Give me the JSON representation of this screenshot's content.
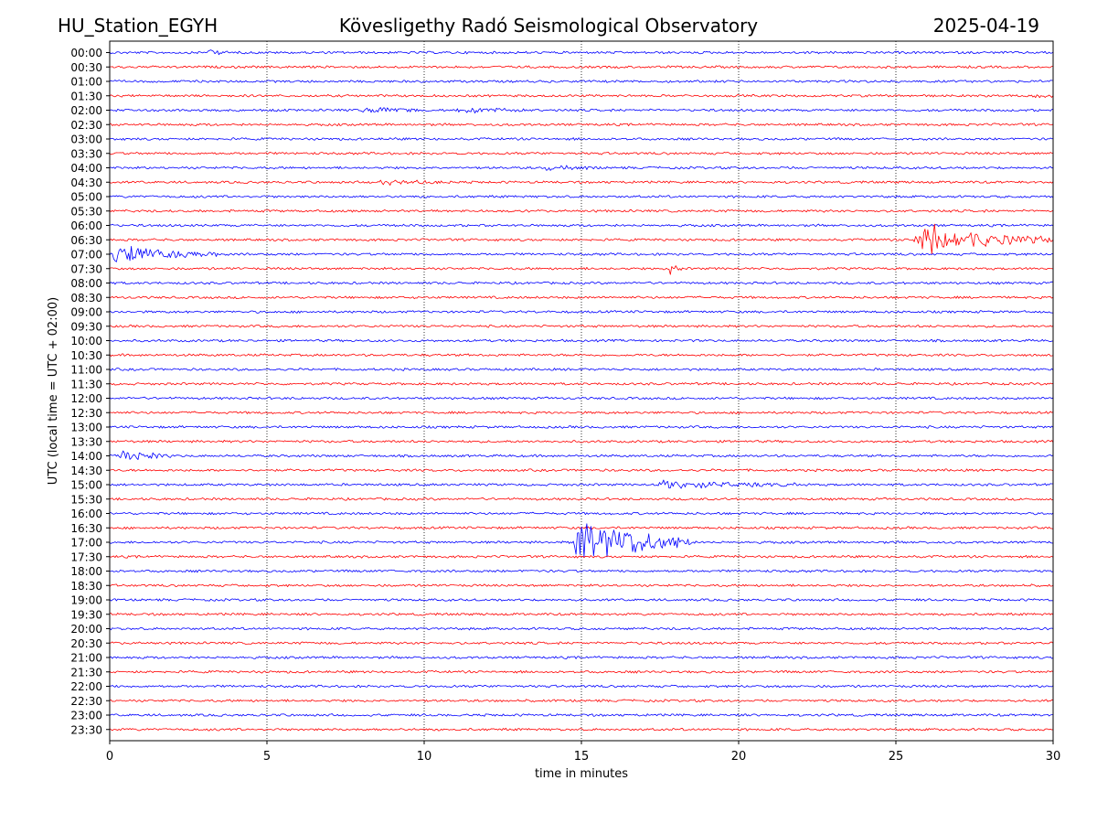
{
  "header": {
    "station": "HU_Station_EGYH",
    "title": "Kövesligethy Radó Seismological Observatory",
    "date": "2025-04-19"
  },
  "chart_data": {
    "type": "line",
    "title": "Kövesligethy Radó Seismological Observatory",
    "xlabel": "time in minutes",
    "ylabel": "UTC (local time = UTC + 02:00)",
    "xlim": [
      0,
      30
    ],
    "x_ticks": [
      0,
      5,
      10,
      15,
      20,
      25,
      30
    ],
    "grid": "vertical dotted at each x tick",
    "row_labels": [
      "00:00",
      "00:30",
      "01:00",
      "01:30",
      "02:00",
      "02:30",
      "03:00",
      "03:30",
      "04:00",
      "04:30",
      "05:00",
      "05:30",
      "06:00",
      "06:30",
      "07:00",
      "07:30",
      "08:00",
      "08:30",
      "09:00",
      "09:30",
      "10:00",
      "10:30",
      "11:00",
      "11:30",
      "12:00",
      "12:30",
      "13:00",
      "13:30",
      "14:00",
      "14:30",
      "15:00",
      "15:30",
      "16:00",
      "16:30",
      "17:00",
      "17:30",
      "18:00",
      "18:30",
      "19:00",
      "19:30",
      "20:00",
      "20:30",
      "21:00",
      "21:30",
      "22:00",
      "22:30",
      "23:00",
      "23:30"
    ],
    "trace_colors": [
      "#0000ff",
      "#ff0000"
    ],
    "events": [
      {
        "row": "00:00",
        "start_min": 3.0,
        "end_min": 4.0,
        "amplitude": 0.15
      },
      {
        "row": "01:30",
        "start_min": 29.4,
        "end_min": 30.0,
        "amplitude": 0.15
      },
      {
        "row": "02:00",
        "start_min": 8.0,
        "end_min": 9.8,
        "amplitude": 0.22
      },
      {
        "row": "02:00",
        "start_min": 11.0,
        "end_min": 13.2,
        "amplitude": 0.22
      },
      {
        "row": "04:00",
        "start_min": 13.8,
        "end_min": 15.5,
        "amplitude": 0.12
      },
      {
        "row": "04:30",
        "start_min": 8.5,
        "end_min": 11.0,
        "amplitude": 0.12
      },
      {
        "row": "06:30",
        "start_min": 25.5,
        "end_min": 30.0,
        "amplitude": 0.85
      },
      {
        "row": "07:00",
        "start_min": 0.0,
        "end_min": 3.5,
        "amplitude": 0.6
      },
      {
        "row": "07:30",
        "start_min": 17.8,
        "end_min": 18.2,
        "amplitude": 0.35
      },
      {
        "row": "14:00",
        "start_min": 0.3,
        "end_min": 2.0,
        "amplitude": 0.35
      },
      {
        "row": "15:00",
        "start_min": 17.3,
        "end_min": 22.0,
        "amplitude": 0.22
      },
      {
        "row": "17:00",
        "start_min": 14.7,
        "end_min": 18.5,
        "amplitude": 1.6
      }
    ]
  }
}
